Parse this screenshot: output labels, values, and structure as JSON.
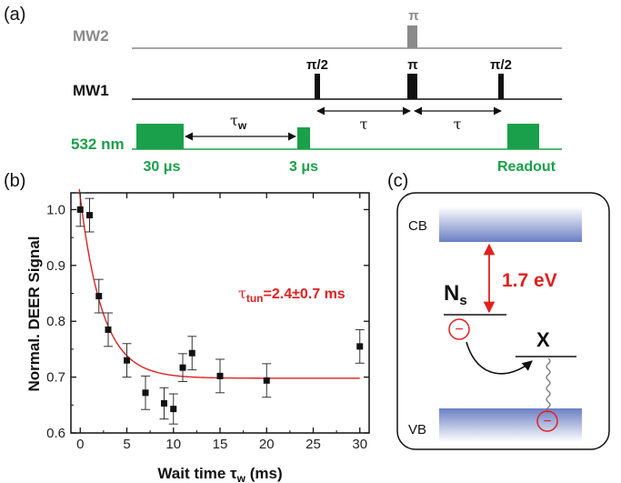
{
  "panels": {
    "a": "(a)",
    "b": "(b)",
    "c": "(c)"
  },
  "pulse_sequence": {
    "channels": {
      "mw2": "MW2",
      "mw1": "MW1",
      "laser": "532 nm"
    },
    "mw2_pulse": "π",
    "mw1_pulses": [
      "π/2",
      "π",
      "π/2"
    ],
    "tau": "τ",
    "tau_w": "τ",
    "tau_w_sub": "w",
    "laser_pulses": [
      "30 μs",
      "3 μs",
      "Readout"
    ]
  },
  "chart_data": {
    "type": "scatter",
    "xlabel_main": "Wait time τ",
    "xlabel_sub": "w",
    "xlabel_unit": " (ms)",
    "ylabel": "Normal. DEER Signal",
    "xlim": [
      -1,
      31
    ],
    "ylim": [
      0.6,
      1.03
    ],
    "xticks": [
      0,
      5,
      10,
      15,
      20,
      25,
      30
    ],
    "yticks": [
      0.6,
      0.7,
      0.8,
      0.9,
      1.0
    ],
    "xtick_labels": [
      "0",
      "5",
      "10",
      "15",
      "20",
      "25",
      "30"
    ],
    "ytick_labels": [
      "0.6",
      "0.7",
      "0.8",
      "0.9",
      "1.0"
    ],
    "grid": false,
    "points": [
      {
        "x": 0,
        "y": 1.0,
        "err": 0.03
      },
      {
        "x": 1,
        "y": 0.99,
        "err": 0.03
      },
      {
        "x": 2,
        "y": 0.845,
        "err": 0.03
      },
      {
        "x": 3,
        "y": 0.785,
        "err": 0.03
      },
      {
        "x": 5,
        "y": 0.73,
        "err": 0.03
      },
      {
        "x": 7,
        "y": 0.672,
        "err": 0.03
      },
      {
        "x": 9,
        "y": 0.653,
        "err": 0.028
      },
      {
        "x": 10,
        "y": 0.643,
        "err": 0.027
      },
      {
        "x": 11,
        "y": 0.717,
        "err": 0.025
      },
      {
        "x": 12,
        "y": 0.743,
        "err": 0.03
      },
      {
        "x": 15,
        "y": 0.702,
        "err": 0.03
      },
      {
        "x": 20,
        "y": 0.694,
        "err": 0.03
      },
      {
        "x": 30,
        "y": 0.755,
        "err": 0.03
      }
    ],
    "fit": {
      "y0": 0.698,
      "A": 0.325,
      "tau": 2.4,
      "x_start": -0.1,
      "x_end": 30
    },
    "annotation_main": "τ",
    "annotation_sub": "tun",
    "annotation_value": "=2.4±0.7 ms",
    "colors": {
      "points": "#111111",
      "fit": "#e02020",
      "annotation": "#e02020"
    }
  },
  "band_diagram": {
    "cb": "CB",
    "vb": "VB",
    "ns_main": "N",
    "ns_sub": "s",
    "gap": "1.7 eV",
    "x": "X",
    "electron_symbol": "−"
  },
  "colors": {
    "green": "#1aa04a",
    "red": "#e02020",
    "gray": "#8a8a8a",
    "band": "#6b7fc4"
  }
}
